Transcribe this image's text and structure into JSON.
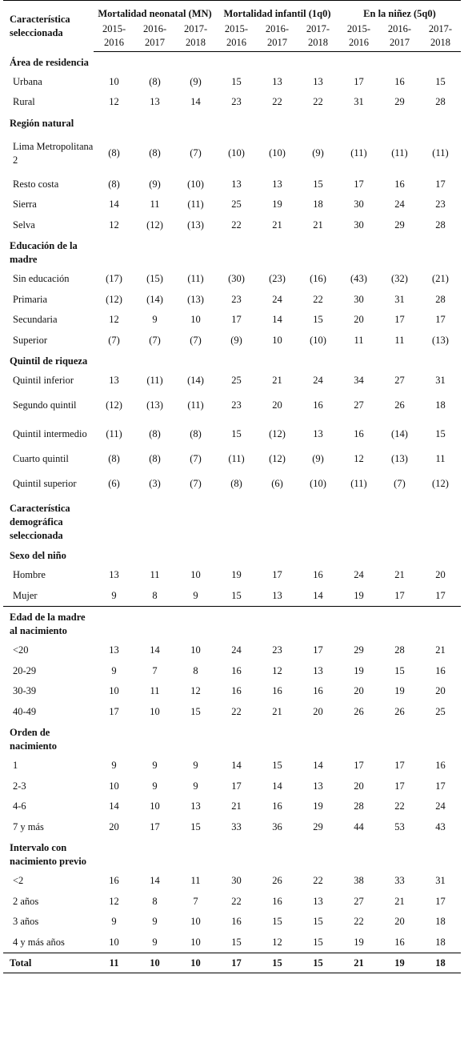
{
  "header": {
    "characteristic": "Característica seleccionada",
    "groups": [
      "Mortalidad neonatal (MN)",
      "Mortalidad infantil (1q0)",
      "En la niñez (5q0)"
    ],
    "years": [
      "2015-2016",
      "2016-2017",
      "2017-2018"
    ]
  },
  "sections": [
    {
      "title": "Área de residencia",
      "rows": [
        {
          "label": "Urbana",
          "values": [
            "10",
            "(8)",
            "(9)",
            "15",
            "13",
            "13",
            "17",
            "16",
            "15"
          ]
        },
        {
          "label": "Rural",
          "values": [
            "12",
            "13",
            "14",
            "23",
            "22",
            "22",
            "31",
            "29",
            "28"
          ]
        }
      ]
    },
    {
      "title": "Región natural",
      "rows": [
        {
          "label": "Lima Metropolitana 2",
          "values": [
            "(8)",
            "(8)",
            "(7)",
            "(10)",
            "(10)",
            "(9)",
            "(11)",
            "(11)",
            "(11)"
          ]
        },
        {
          "label": "Resto costa",
          "values": [
            "(8)",
            "(9)",
            "(10)",
            "13",
            "13",
            "15",
            "17",
            "16",
            "17"
          ]
        },
        {
          "label": "Sierra",
          "values": [
            "14",
            "11",
            "(11)",
            "25",
            "19",
            "18",
            "30",
            "24",
            "23"
          ]
        },
        {
          "label": "Selva",
          "values": [
            "12",
            "(12)",
            "(13)",
            "22",
            "21",
            "21",
            "30",
            "29",
            "28"
          ]
        }
      ]
    },
    {
      "title": "Educación de la madre",
      "rows": [
        {
          "label": "Sin educación",
          "values": [
            "(17)",
            "(15)",
            "(11)",
            "(30)",
            "(23)",
            "(16)",
            "(43)",
            "(32)",
            "(21)"
          ]
        },
        {
          "label": "Primaria",
          "values": [
            "(12)",
            "(14)",
            "(13)",
            "23",
            "24",
            "22",
            "30",
            "31",
            "28"
          ]
        },
        {
          "label": "Secundaria",
          "values": [
            "12",
            "9",
            "10",
            "17",
            "14",
            "15",
            "20",
            "17",
            "17"
          ]
        },
        {
          "label": "Superior",
          "values": [
            "(7)",
            "(7)",
            "(7)",
            "(9)",
            "10",
            "(10)",
            "11",
            "11",
            "(13)"
          ]
        }
      ]
    },
    {
      "title": "Quintil de riqueza",
      "rows": [
        {
          "label": "Quintil inferior",
          "values": [
            "13",
            "(11)",
            "(14)",
            "25",
            "21",
            "24",
            "34",
            "27",
            "31"
          ]
        },
        {
          "label": "Segundo quintil",
          "values": [
            "(12)",
            "(13)",
            "(11)",
            "23",
            "20",
            "16",
            "27",
            "26",
            "18"
          ]
        },
        {
          "label": "Quintil intermedio",
          "values": [
            "(11)",
            "(8)",
            "(8)",
            "15",
            "(12)",
            "13",
            "16",
            "(14)",
            "15"
          ]
        },
        {
          "label": "Cuarto quintil",
          "values": [
            "(8)",
            "(8)",
            "(7)",
            "(11)",
            "(12)",
            "(9)",
            "12",
            "(13)",
            "11"
          ]
        },
        {
          "label": "Quintil superior",
          "values": [
            "(6)",
            "(3)",
            "(7)",
            "(8)",
            "(6)",
            "(10)",
            "(11)",
            "(7)",
            "(12)"
          ]
        }
      ]
    },
    {
      "title": "Característica demográfica seleccionada",
      "rows": []
    },
    {
      "title": "Sexo del niño",
      "rows": [
        {
          "label": "Hombre",
          "values": [
            "13",
            "11",
            "10",
            "19",
            "17",
            "16",
            "24",
            "21",
            "20"
          ]
        },
        {
          "label": "Mujer",
          "values": [
            "9",
            "8",
            "9",
            "15",
            "13",
            "14",
            "19",
            "17",
            "17"
          ]
        }
      ]
    },
    {
      "title": "Edad de la madre al nacimiento",
      "rows": [
        {
          "label": "<20",
          "values": [
            "13",
            "14",
            "10",
            "24",
            "23",
            "17",
            "29",
            "28",
            "21"
          ]
        },
        {
          "label": "20-29",
          "values": [
            "9",
            "7",
            "8",
            "16",
            "12",
            "13",
            "19",
            "15",
            "16"
          ]
        },
        {
          "label": "30-39",
          "values": [
            "10",
            "11",
            "12",
            "16",
            "16",
            "16",
            "20",
            "19",
            "20"
          ]
        },
        {
          "label": "40-49",
          "values": [
            "17",
            "10",
            "15",
            "22",
            "21",
            "20",
            "26",
            "26",
            "25"
          ]
        }
      ]
    },
    {
      "title": "Orden de nacimiento",
      "rows": [
        {
          "label": "1",
          "values": [
            "9",
            "9",
            "9",
            "14",
            "15",
            "14",
            "17",
            "17",
            "16"
          ]
        },
        {
          "label": "2-3",
          "values": [
            "10",
            "9",
            "9",
            "17",
            "14",
            "13",
            "20",
            "17",
            "17"
          ]
        },
        {
          "label": "4-6",
          "values": [
            "14",
            "10",
            "13",
            "21",
            "16",
            "19",
            "28",
            "22",
            "24"
          ]
        },
        {
          "label": "7 y más",
          "values": [
            "20",
            "17",
            "15",
            "33",
            "36",
            "29",
            "44",
            "53",
            "43"
          ]
        }
      ]
    },
    {
      "title": "Intervalo con nacimiento previo",
      "rows": [
        {
          "label": "<2",
          "values": [
            "16",
            "14",
            "11",
            "30",
            "26",
            "22",
            "38",
            "33",
            "31"
          ]
        },
        {
          "label": "2 años",
          "values": [
            "12",
            "8",
            "7",
            "22",
            "16",
            "13",
            "27",
            "21",
            "17"
          ]
        },
        {
          "label": "3 años",
          "values": [
            "9",
            "9",
            "10",
            "16",
            "15",
            "15",
            "22",
            "20",
            "18"
          ]
        },
        {
          "label": "4 y más años",
          "values": [
            "10",
            "9",
            "10",
            "15",
            "12",
            "15",
            "19",
            "16",
            "18"
          ]
        }
      ]
    }
  ],
  "total": {
    "label": "Total",
    "values": [
      "11",
      "10",
      "10",
      "17",
      "15",
      "15",
      "21",
      "19",
      "18"
    ]
  }
}
